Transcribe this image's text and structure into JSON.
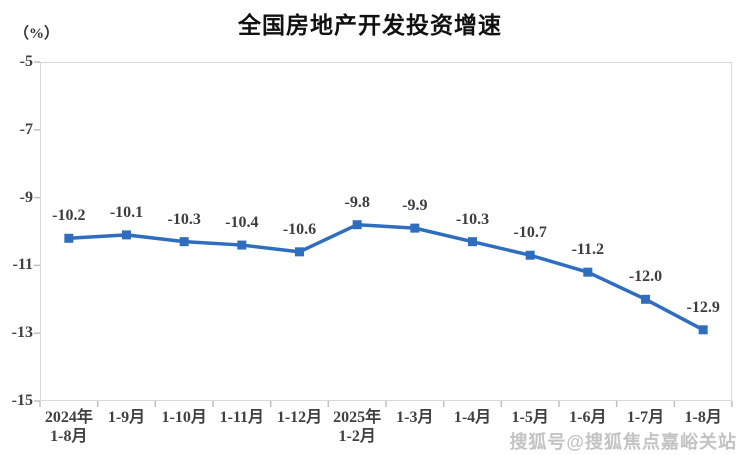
{
  "chart_data": {
    "type": "line",
    "title": "全国房地产开发投资增速",
    "y_unit": "（%）",
    "categories": [
      [
        "2024年",
        "1-8月"
      ],
      [
        "1-9月"
      ],
      [
        "1-10月"
      ],
      [
        "1-11月"
      ],
      [
        "1-12月"
      ],
      [
        "2025年",
        "1-2月"
      ],
      [
        "1-3月"
      ],
      [
        "1-4月"
      ],
      [
        "1-5月"
      ],
      [
        "1-6月"
      ],
      [
        "1-7月"
      ],
      [
        "1-8月"
      ]
    ],
    "values": [
      -10.2,
      -10.1,
      -10.3,
      -10.4,
      -10.6,
      -9.8,
      -9.9,
      -10.3,
      -10.7,
      -11.2,
      -12.0,
      -12.9
    ],
    "data_labels": [
      "-10.2",
      "-10.1",
      "-10.3",
      "-10.4",
      "-10.6",
      "-9.8",
      "-9.9",
      "-10.3",
      "-10.7",
      "-11.2",
      "-12.0",
      "-12.9"
    ],
    "y_ticks": [
      -5,
      -7,
      -9,
      -11,
      -13,
      -15
    ],
    "ylim": [
      -15,
      -5
    ],
    "grid": false,
    "legend": "none",
    "colors": {
      "series": "#2e6ec0",
      "label_text": "#3d3d3d",
      "axis_text": "#404040",
      "plot_border": "#d9d9d9",
      "tick_mark": "#bfbfbf",
      "title_text": "#111111"
    }
  },
  "watermark": {
    "text": "搜狐号@搜狐焦点嘉峪关站"
  }
}
